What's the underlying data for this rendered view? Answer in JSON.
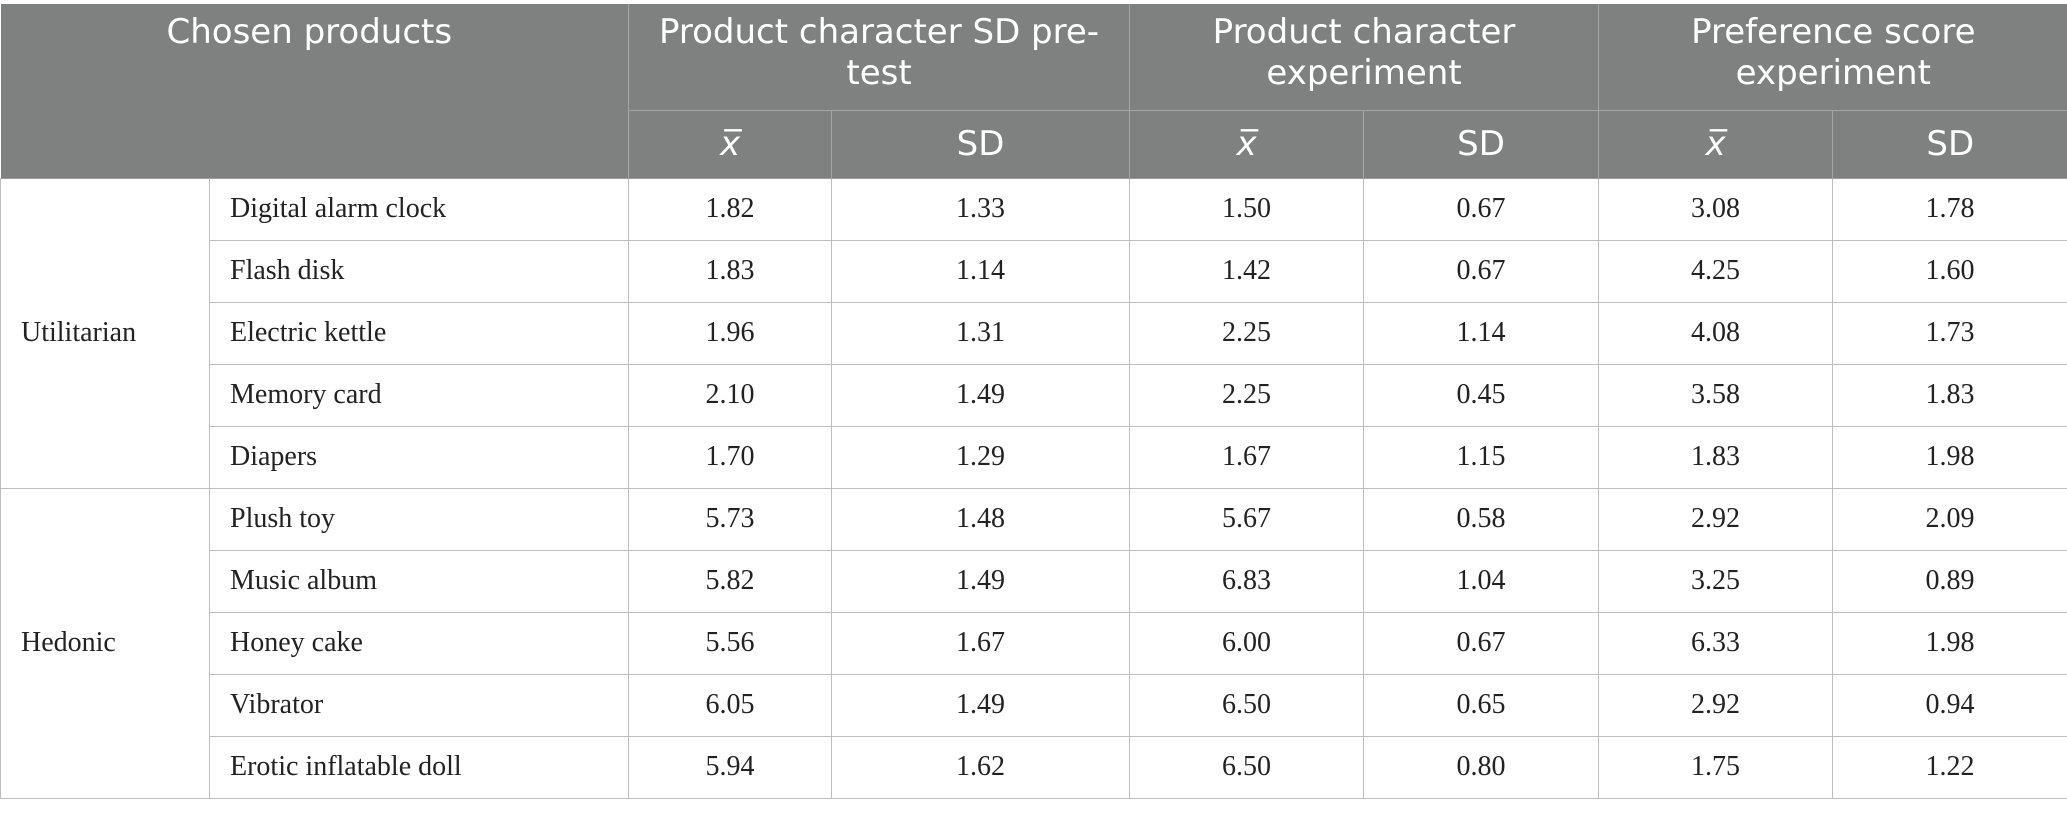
{
  "header": {
    "chosen_products": "Chosen products",
    "groups": [
      {
        "label": "Product character SD pre-test"
      },
      {
        "label": "Product character experiment"
      },
      {
        "label": "Preference score experiment"
      }
    ],
    "mean_label": "x̅",
    "sd_label": "SD"
  },
  "categories": [
    {
      "name": "Utilitarian",
      "rows": [
        {
          "product": "Digital alarm clock",
          "values": [
            "1.82",
            "1.33",
            "1.50",
            "0.67",
            "3.08",
            "1.78"
          ]
        },
        {
          "product": "Flash disk",
          "values": [
            "1.83",
            "1.14",
            "1.42",
            "0.67",
            "4.25",
            "1.60"
          ]
        },
        {
          "product": "Electric kettle",
          "values": [
            "1.96",
            "1.31",
            "2.25",
            "1.14",
            "4.08",
            "1.73"
          ]
        },
        {
          "product": "Memory card",
          "values": [
            "2.10",
            "1.49",
            "2.25",
            "0.45",
            "3.58",
            "1.83"
          ]
        },
        {
          "product": "Diapers",
          "values": [
            "1.70",
            "1.29",
            "1.67",
            "1.15",
            "1.83",
            "1.98"
          ]
        }
      ]
    },
    {
      "name": "Hedonic",
      "rows": [
        {
          "product": "Plush toy",
          "values": [
            "5.73",
            "1.48",
            "5.67",
            "0.58",
            "2.92",
            "2.09"
          ]
        },
        {
          "product": "Music album",
          "values": [
            "5.82",
            "1.49",
            "6.83",
            "1.04",
            "3.25",
            "0.89"
          ]
        },
        {
          "product": "Honey cake",
          "values": [
            "5.56",
            "1.67",
            "6.00",
            "0.67",
            "6.33",
            "1.98"
          ]
        },
        {
          "product": "Vibrator",
          "values": [
            "6.05",
            "1.49",
            "6.50",
            "0.65",
            "2.92",
            "0.94"
          ]
        },
        {
          "product": "Erotic inflatable doll",
          "values": [
            "5.94",
            "1.62",
            "6.50",
            "0.80",
            "1.75",
            "1.22"
          ]
        }
      ]
    }
  ]
}
